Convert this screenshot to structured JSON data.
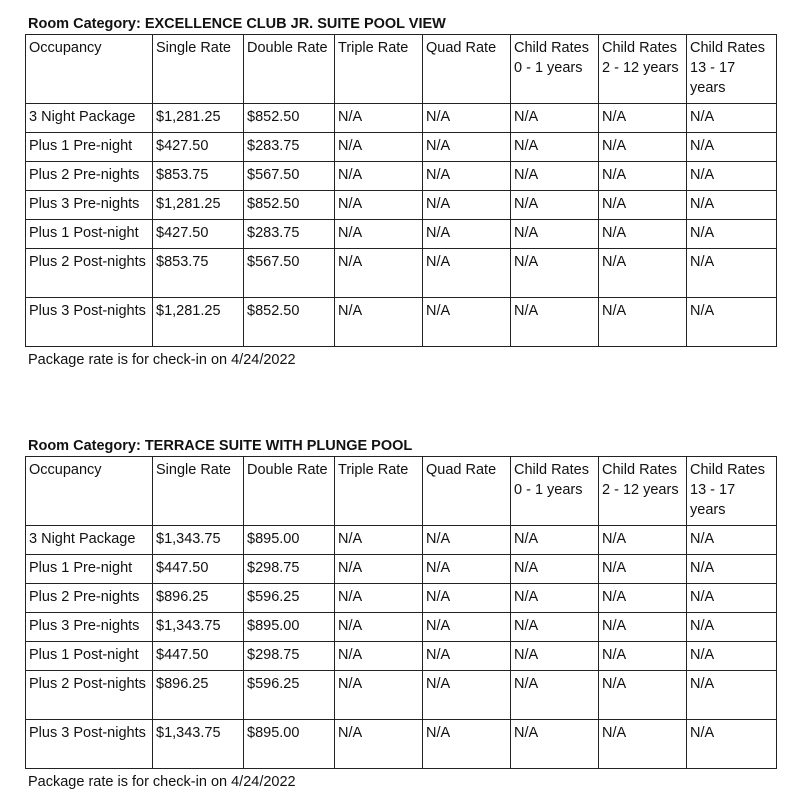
{
  "headers": [
    "Occupancy",
    "Single Rate",
    "Double Rate",
    "Triple Rate",
    "Quad Rate",
    "Child Rates 0 - 1 years",
    "Child Rates 2 - 12 years",
    "Child Rates 13 - 17 years"
  ],
  "tables": [
    {
      "title": "Room Category: EXCELLENCE CLUB JR. SUITE POOL VIEW",
      "rows": [
        [
          "3 Night Package",
          "$1,281.25",
          "$852.50",
          "N/A",
          "N/A",
          "N/A",
          "N/A",
          "N/A"
        ],
        [
          "Plus 1 Pre-night",
          "$427.50",
          "$283.75",
          "N/A",
          "N/A",
          "N/A",
          "N/A",
          "N/A"
        ],
        [
          "Plus 2 Pre-nights",
          "$853.75",
          "$567.50",
          "N/A",
          "N/A",
          "N/A",
          "N/A",
          "N/A"
        ],
        [
          "Plus 3 Pre-nights",
          "$1,281.25",
          "$852.50",
          "N/A",
          "N/A",
          "N/A",
          "N/A",
          "N/A"
        ],
        [
          "Plus 1 Post-night",
          "$427.50",
          "$283.75",
          "N/A",
          "N/A",
          "N/A",
          "N/A",
          "N/A"
        ],
        [
          "Plus 2 Post-nights",
          "$853.75",
          "$567.50",
          "N/A",
          "N/A",
          "N/A",
          "N/A",
          "N/A"
        ],
        [
          "Plus 3 Post-nights",
          "$1,281.25",
          "$852.50",
          "N/A",
          "N/A",
          "N/A",
          "N/A",
          "N/A"
        ]
      ],
      "note": "Package rate is for check-in on 4/24/2022"
    },
    {
      "title": "Room Category: TERRACE SUITE WITH PLUNGE POOL",
      "rows": [
        [
          "3 Night Package",
          "$1,343.75",
          "$895.00",
          "N/A",
          "N/A",
          "N/A",
          "N/A",
          "N/A"
        ],
        [
          "Plus 1 Pre-night",
          "$447.50",
          "$298.75",
          "N/A",
          "N/A",
          "N/A",
          "N/A",
          "N/A"
        ],
        [
          "Plus 2 Pre-nights",
          "$896.25",
          "$596.25",
          "N/A",
          "N/A",
          "N/A",
          "N/A",
          "N/A"
        ],
        [
          "Plus 3 Pre-nights",
          "$1,343.75",
          "$895.00",
          "N/A",
          "N/A",
          "N/A",
          "N/A",
          "N/A"
        ],
        [
          "Plus 1 Post-night",
          "$447.50",
          "$298.75",
          "N/A",
          "N/A",
          "N/A",
          "N/A",
          "N/A"
        ],
        [
          "Plus 2 Post-nights",
          "$896.25",
          "$596.25",
          "N/A",
          "N/A",
          "N/A",
          "N/A",
          "N/A"
        ],
        [
          "Plus 3 Post-nights",
          "$1,343.75",
          "$895.00",
          "N/A",
          "N/A",
          "N/A",
          "N/A",
          "N/A"
        ]
      ],
      "note": "Package rate is for check-in on 4/24/2022"
    }
  ]
}
